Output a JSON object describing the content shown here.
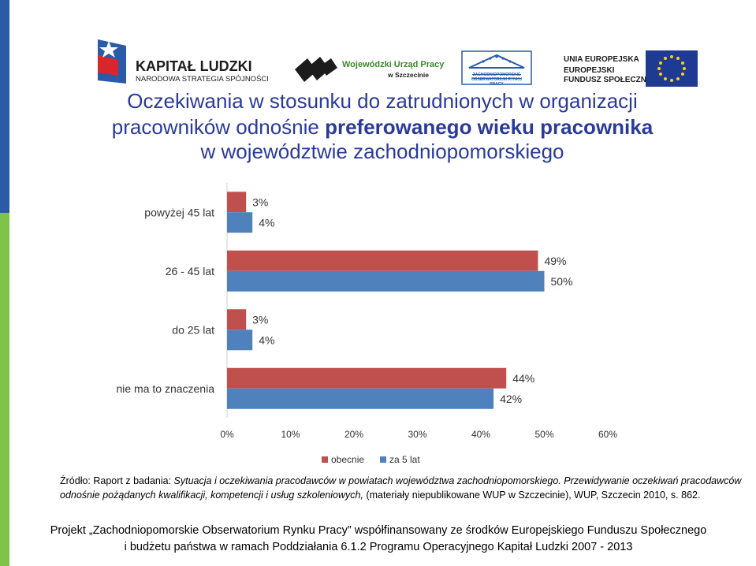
{
  "logos": {
    "kl_name": "KAPITAŁ LUDZKI",
    "kl_sub": "NARODOWA STRATEGIA SPÓJNOŚCI",
    "wup_name": "Wojewódzki Urząd Pracy",
    "wup_city": "w Szczecinie",
    "zorp_text": "ZACHODNIOPOMORSKIE OBSERWATORIUM RYNKU PRACY",
    "ue_line1": "UNIA EUROPEJSKA",
    "ue_line2": "EUROPEJSKI",
    "ue_line3": "FUNDUSZ SPOŁECZNY"
  },
  "title": {
    "line1": "Oczekiwania w stosunku do zatrudnionych w organizacji",
    "line2_a": "pracowników odnośnie",
    "line2_b": "preferowanego wieku pracownika",
    "line3": "w województwie zachodniopomorskiego"
  },
  "chart_data": {
    "type": "bar",
    "orientation": "horizontal",
    "categories": [
      "powyżej 45 lat",
      "26 - 45 lat",
      "do 25 lat",
      "nie ma to znaczenia"
    ],
    "series": [
      {
        "name": "obecnie",
        "values": [
          3,
          49,
          3,
          44
        ],
        "labels": [
          "3%",
          "49%",
          "3%",
          "44%"
        ],
        "color": "#c0504d"
      },
      {
        "name": "za 5 lat",
        "values": [
          4,
          50,
          4,
          42
        ],
        "labels": [
          "4%",
          "50%",
          "4%",
          "42%"
        ],
        "color": "#4f81bd"
      }
    ],
    "xlim": [
      0,
      60
    ],
    "xticks": [
      "0%",
      "10%",
      "20%",
      "30%",
      "40%",
      "50%",
      "60%"
    ],
    "legend": "bottom",
    "grid": false
  },
  "source": {
    "prefix": "Źródło: Raport z badania:",
    "italic": "Sytuacja i oczekiwania pracodawców w powiatach województwa zachodniopomorskiego. Przewidywanie oczekiwań pracodawców odnośnie pożądanych kwalifikacji, kompetencji i usług szkoleniowych,",
    "suffix": "(materiały niepublikowane WUP w Szczecinie), WUP, Szczecin 2010, s. 862."
  },
  "footer": {
    "line1": "Projekt „Zachodniopomorskie Obserwatorium Rynku Pracy” współfinansowany ze środków Europejskiego Funduszu Społecznego",
    "line2": "i budżetu państwa w ramach Poddziałania 6.1.2 Programu Operacyjnego Kapitał Ludzki 2007 - 2013"
  },
  "colors": {
    "title": "#2a3a9a",
    "sidebar_blue": "#2a5aa8",
    "sidebar_green": "#7fc34a"
  }
}
